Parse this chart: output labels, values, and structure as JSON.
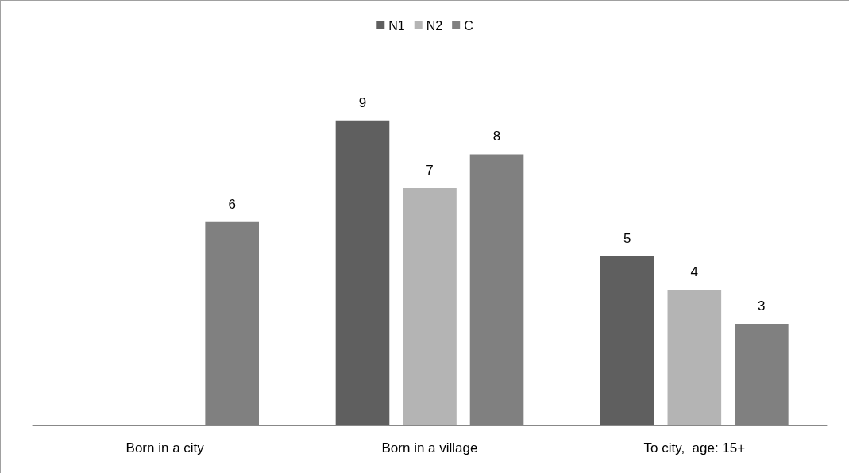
{
  "chart_data": {
    "type": "bar",
    "categories": [
      "Born in a city",
      "Born in a village",
      "To city,  age: 15+"
    ],
    "series": [
      {
        "name": "N1",
        "color": "#5f5f5f",
        "values": [
          null,
          9,
          5
        ]
      },
      {
        "name": "N2",
        "color": "#b4b4b4",
        "values": [
          null,
          7,
          4
        ]
      },
      {
        "name": "C",
        "color": "#808080",
        "values": [
          6,
          8,
          3
        ]
      }
    ],
    "data_labels": true,
    "legend": "top"
  }
}
